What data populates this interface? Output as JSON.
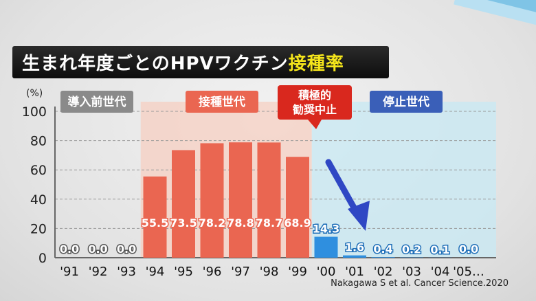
{
  "title": {
    "main": "生まれ年度ごとのHPVワクチン",
    "accent": "接種率"
  },
  "credit": "Nakagawa S et al. Cancer Science.2020",
  "colors": {
    "bar_vaccinated": "#ea6651",
    "bar_stopped": "#2f8fdf",
    "region_vaccinated": "#f5cfc2",
    "region_stopped": "#c9e8f2",
    "arrow": "#2f47c4"
  },
  "chart_data": {
    "type": "bar",
    "y_unit_label": "(%)",
    "ylim": [
      0,
      100
    ],
    "yticks": [
      0,
      20,
      40,
      60,
      80,
      100
    ],
    "grid": true,
    "categories": [
      "'91",
      "'92",
      "'93",
      "'94",
      "'95",
      "'96",
      "'97",
      "'98",
      "'99",
      "'00",
      "'01",
      "'02",
      "'03",
      "'04",
      "'05…"
    ],
    "values": [
      0.0,
      0.0,
      0.0,
      55.5,
      73.5,
      78.2,
      78.8,
      78.7,
      68.9,
      14.3,
      1.6,
      0.4,
      0.2,
      0.1,
      0.0
    ],
    "value_labels": [
      "0.0",
      "0.0",
      "0.0",
      "55.5",
      "73.5",
      "78.2",
      "78.8",
      "78.7",
      "68.9",
      "14.3",
      "1.6",
      "0.4",
      "0.2",
      "0.1",
      "0.0"
    ],
    "groups": [
      {
        "label": "導入前世代",
        "start": 0,
        "end": 2,
        "style": "gray"
      },
      {
        "label": "接種世代",
        "start": 3,
        "end": 8,
        "style": "vaccinated"
      },
      {
        "label": "積極的\n勧奨中止",
        "start": 9,
        "end": 9,
        "style": "callout"
      },
      {
        "label": "停止世代",
        "start": 9,
        "end": 14,
        "style": "stopped"
      }
    ],
    "annotation": {
      "type": "arrow",
      "from_category": "'00",
      "to_category": "'01",
      "color": "#2f47c4"
    }
  }
}
